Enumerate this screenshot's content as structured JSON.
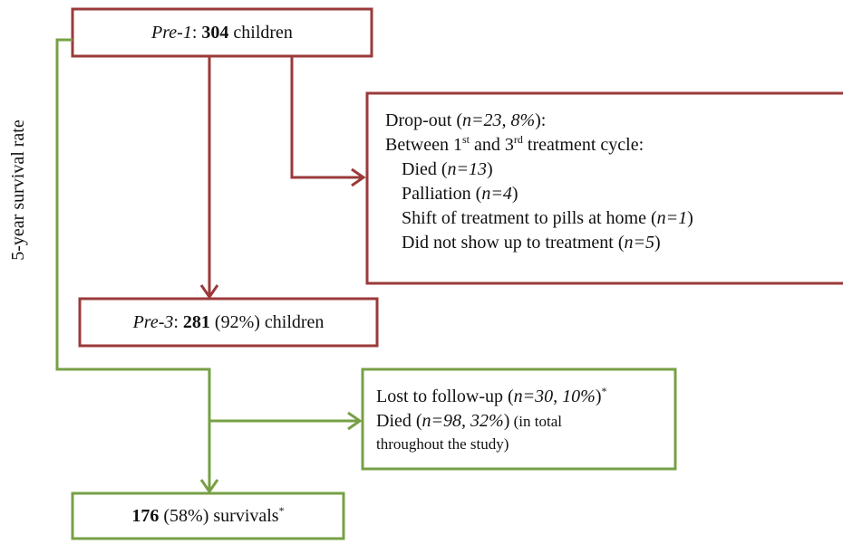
{
  "side_label": "5-year survival rate",
  "boxes": {
    "pre1": [
      "Pre-1",
      ": ",
      "304",
      " children"
    ],
    "dropout": [
      [
        "Drop-out (",
        "n=23, 8%",
        "):"
      ],
      [
        "Between 1",
        "st",
        " and 3",
        "rd",
        " treatment cycle:"
      ],
      [
        "Died (",
        "n=13",
        ")"
      ],
      [
        "Palliation (",
        "n=4",
        ")"
      ],
      [
        "Shift of treatment to pills at home (",
        "n=1",
        ")"
      ],
      [
        "Did not show up to treatment (",
        "n=5",
        ")"
      ]
    ],
    "pre3": [
      "Pre-3",
      ": ",
      "281",
      " (92%) children"
    ],
    "lost": [
      [
        "Lost to follow-up (",
        "n=30, 10%",
        ")",
        "*"
      ],
      [
        "Died (",
        "n=98, 32%",
        ")",
        " (in total"
      ],
      [
        "throughout the study)"
      ]
    ],
    "survivals": [
      "176",
      " (58%) survivals",
      "*"
    ]
  }
}
